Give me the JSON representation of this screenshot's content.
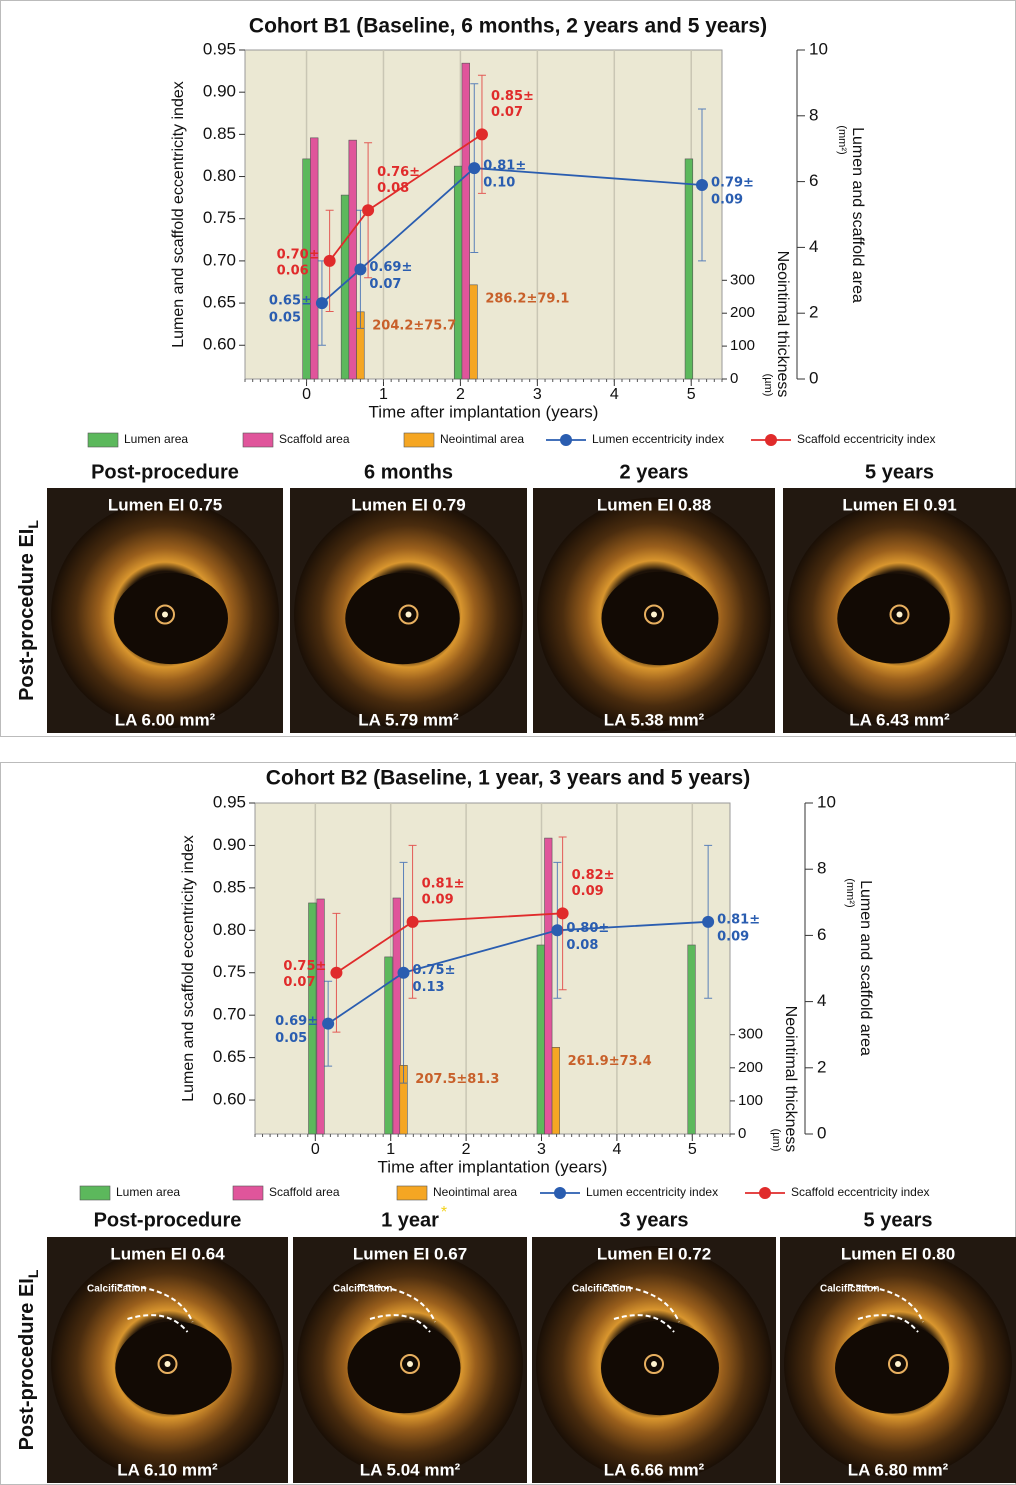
{
  "chart_data": [
    {
      "type": "combo",
      "title": "Cohort B1 (Baseline, 6 months, 2 years and 5 years)",
      "xlabel": "Time after implantation (years)",
      "ylabel": "Lumen and scaffold eccentricity index",
      "y2label": "Lumen and scaffold area",
      "y2unit": "(mm²)",
      "y3label": "Neointimal thickness",
      "y3unit": "(µm)",
      "xlim": [
        -0.8,
        5.4
      ],
      "xticks": [
        0,
        1,
        2,
        3,
        4,
        5
      ],
      "ylim": [
        0.56,
        0.95
      ],
      "yticks": [
        {
          "value": 0.6,
          "label": "0.60"
        },
        0.65,
        {
          "value": 0.7,
          "label": "0.70"
        },
        0.75,
        {
          "value": 0.8,
          "label": "0.80"
        },
        0.85,
        {
          "value": 0.9,
          "label": "0.90"
        },
        0.95
      ],
      "y2lim": [
        0,
        10
      ],
      "y2ticks": [
        0,
        2,
        4,
        6,
        8,
        10
      ],
      "y3lim": [
        0,
        1000
      ],
      "y3ticks": [
        0,
        100,
        200,
        300
      ],
      "grid": "x",
      "background": "#ebe8d3",
      "series": [
        {
          "name": "Lumen area",
          "type": "bar",
          "axis": "y2",
          "color": "#5cb85c",
          "x": [
            0.0,
            0.5,
            1.97,
            4.97
          ],
          "values": [
            6.69,
            5.59,
            6.47,
            6.69
          ]
        },
        {
          "name": "Scaffold area",
          "type": "bar",
          "axis": "y2",
          "color": "#e0559b",
          "x": [
            0.1,
            0.6,
            2.07
          ],
          "values": [
            7.33,
            7.26,
            9.6
          ]
        },
        {
          "name": "Neointimal area",
          "type": "bar",
          "axis": "y3",
          "color": "#f5a623",
          "x": [
            0.7,
            2.17
          ],
          "values": [
            204.2,
            286.2
          ],
          "value_labels": [
            "204.2±75.7",
            "286.2±79.1"
          ]
        },
        {
          "name": "Lumen eccentricity index",
          "type": "line",
          "color": "#2a5db0",
          "x": [
            0.2,
            0.7,
            2.18,
            5.14
          ],
          "values": [
            0.65,
            0.69,
            0.81,
            0.79
          ],
          "errors": [
            0.05,
            0.07,
            0.1,
            0.09
          ],
          "value_labels": [
            "0.65±",
            "0.69±",
            "0.81±",
            "0.79±"
          ],
          "error_labels": [
            "0.05",
            "0.07",
            "0.10",
            "0.09"
          ]
        },
        {
          "name": "Scaffold eccentricity index",
          "type": "line",
          "color": "#e02b2b",
          "x": [
            0.3,
            0.8,
            2.28
          ],
          "values": [
            0.7,
            0.76,
            0.85
          ],
          "errors": [
            0.06,
            0.08,
            0.07
          ],
          "value_labels": [
            "0.70±",
            "0.76±",
            "0.85±"
          ],
          "error_labels": [
            "0.06",
            "0.08",
            "0.07"
          ]
        }
      ]
    },
    {
      "type": "combo",
      "title": "Cohort B2 (Baseline, 1 year, 3 years and 5 years)",
      "xlabel": "Time after implantation (years)",
      "ylabel": "Lumen and scaffold eccentricity index",
      "y2label": "Lumen and scaffold area",
      "y2unit": "(mm²)",
      "y3label": "Neointimal thickness",
      "y3unit": "(µm)",
      "xlim": [
        -0.8,
        5.5
      ],
      "xticks": [
        0,
        1,
        2,
        3,
        4,
        5
      ],
      "ylim": [
        0.56,
        0.95
      ],
      "yticks": [
        {
          "value": 0.6,
          "label": "0.60"
        },
        0.65,
        {
          "value": 0.7,
          "label": "0.70"
        },
        0.75,
        {
          "value": 0.8,
          "label": "0.80"
        },
        0.85,
        {
          "value": 0.9,
          "label": "0.90"
        },
        0.95
      ],
      "y2lim": [
        0,
        10
      ],
      "y2ticks": [
        0,
        2,
        4,
        6,
        8,
        10
      ],
      "y3lim": [
        0,
        1000
      ],
      "y3ticks": [
        0,
        100,
        200,
        300
      ],
      "grid": "x",
      "background": "#ebe8d3",
      "series": [
        {
          "name": "Lumen area",
          "type": "bar",
          "axis": "y2",
          "color": "#5cb85c",
          "x": [
            -0.04,
            0.97,
            2.99,
            4.99
          ],
          "values": [
            6.98,
            5.35,
            5.71,
            5.71
          ]
        },
        {
          "name": "Scaffold area",
          "type": "bar",
          "axis": "y2",
          "color": "#e0559b",
          "x": [
            0.07,
            1.08,
            3.09
          ],
          "values": [
            7.1,
            7.13,
            8.94
          ]
        },
        {
          "name": "Neointimal area",
          "type": "bar",
          "axis": "y3",
          "color": "#f5a623",
          "x": [
            1.17,
            3.19
          ],
          "values": [
            207.5,
            261.9
          ],
          "value_labels": [
            "207.5±81.3",
            "261.9±73.4"
          ]
        },
        {
          "name": "Lumen eccentricity index",
          "type": "line",
          "color": "#2a5db0",
          "x": [
            0.17,
            1.17,
            3.21,
            5.21
          ],
          "values": [
            0.69,
            0.75,
            0.8,
            0.81
          ],
          "errors": [
            0.05,
            0.13,
            0.08,
            0.09
          ],
          "value_labels": [
            "0.69±",
            "0.75±",
            "0.80±",
            "0.81±"
          ],
          "error_labels": [
            "0.05",
            "0.13",
            "0.08",
            "0.09"
          ]
        },
        {
          "name": "Scaffold eccentricity index",
          "type": "line",
          "color": "#e02b2b",
          "x": [
            0.28,
            1.29,
            3.28
          ],
          "values": [
            0.75,
            0.81,
            0.82
          ],
          "errors": [
            0.07,
            0.09,
            0.09
          ],
          "value_labels": [
            "0.75±",
            "0.81±",
            "0.82±"
          ],
          "error_labels": [
            "0.07",
            "0.09",
            "0.09"
          ]
        }
      ]
    }
  ],
  "panels": [
    {
      "row_label": "Post-procedure EI",
      "row_label_sub": "L",
      "columns": [
        {
          "title": "Post-procedure",
          "ei": "Lumen EI 0.75",
          "la": "LA 6.00 mm²"
        },
        {
          "title": "6 months",
          "ei": "Lumen EI 0.79",
          "la": "LA 5.79 mm²"
        },
        {
          "title": "2 years",
          "ei": "Lumen EI 0.88",
          "la": "LA 5.38 mm²"
        },
        {
          "title": "5 years",
          "ei": "Lumen EI 0.91",
          "la": "LA 6.43 mm²"
        }
      ]
    },
    {
      "row_label": "Post-procedure EI",
      "row_label_sub": "L",
      "columns": [
        {
          "title": "Post-procedure",
          "ei": "Lumen EI 0.64",
          "la": "LA 6.10 mm²",
          "note": "Calcification"
        },
        {
          "title": "1 year",
          "title_mark": "*",
          "ei": "Lumen EI 0.67",
          "la": "LA 5.04 mm²",
          "note": "Calcification"
        },
        {
          "title": "3 years",
          "ei": "Lumen EI 0.72",
          "la": "LA 6.66 mm²",
          "note": "Calcification"
        },
        {
          "title": "5 years",
          "ei": "Lumen EI 0.80",
          "la": "LA 6.80 mm²",
          "note": "Calcification"
        }
      ]
    }
  ]
}
